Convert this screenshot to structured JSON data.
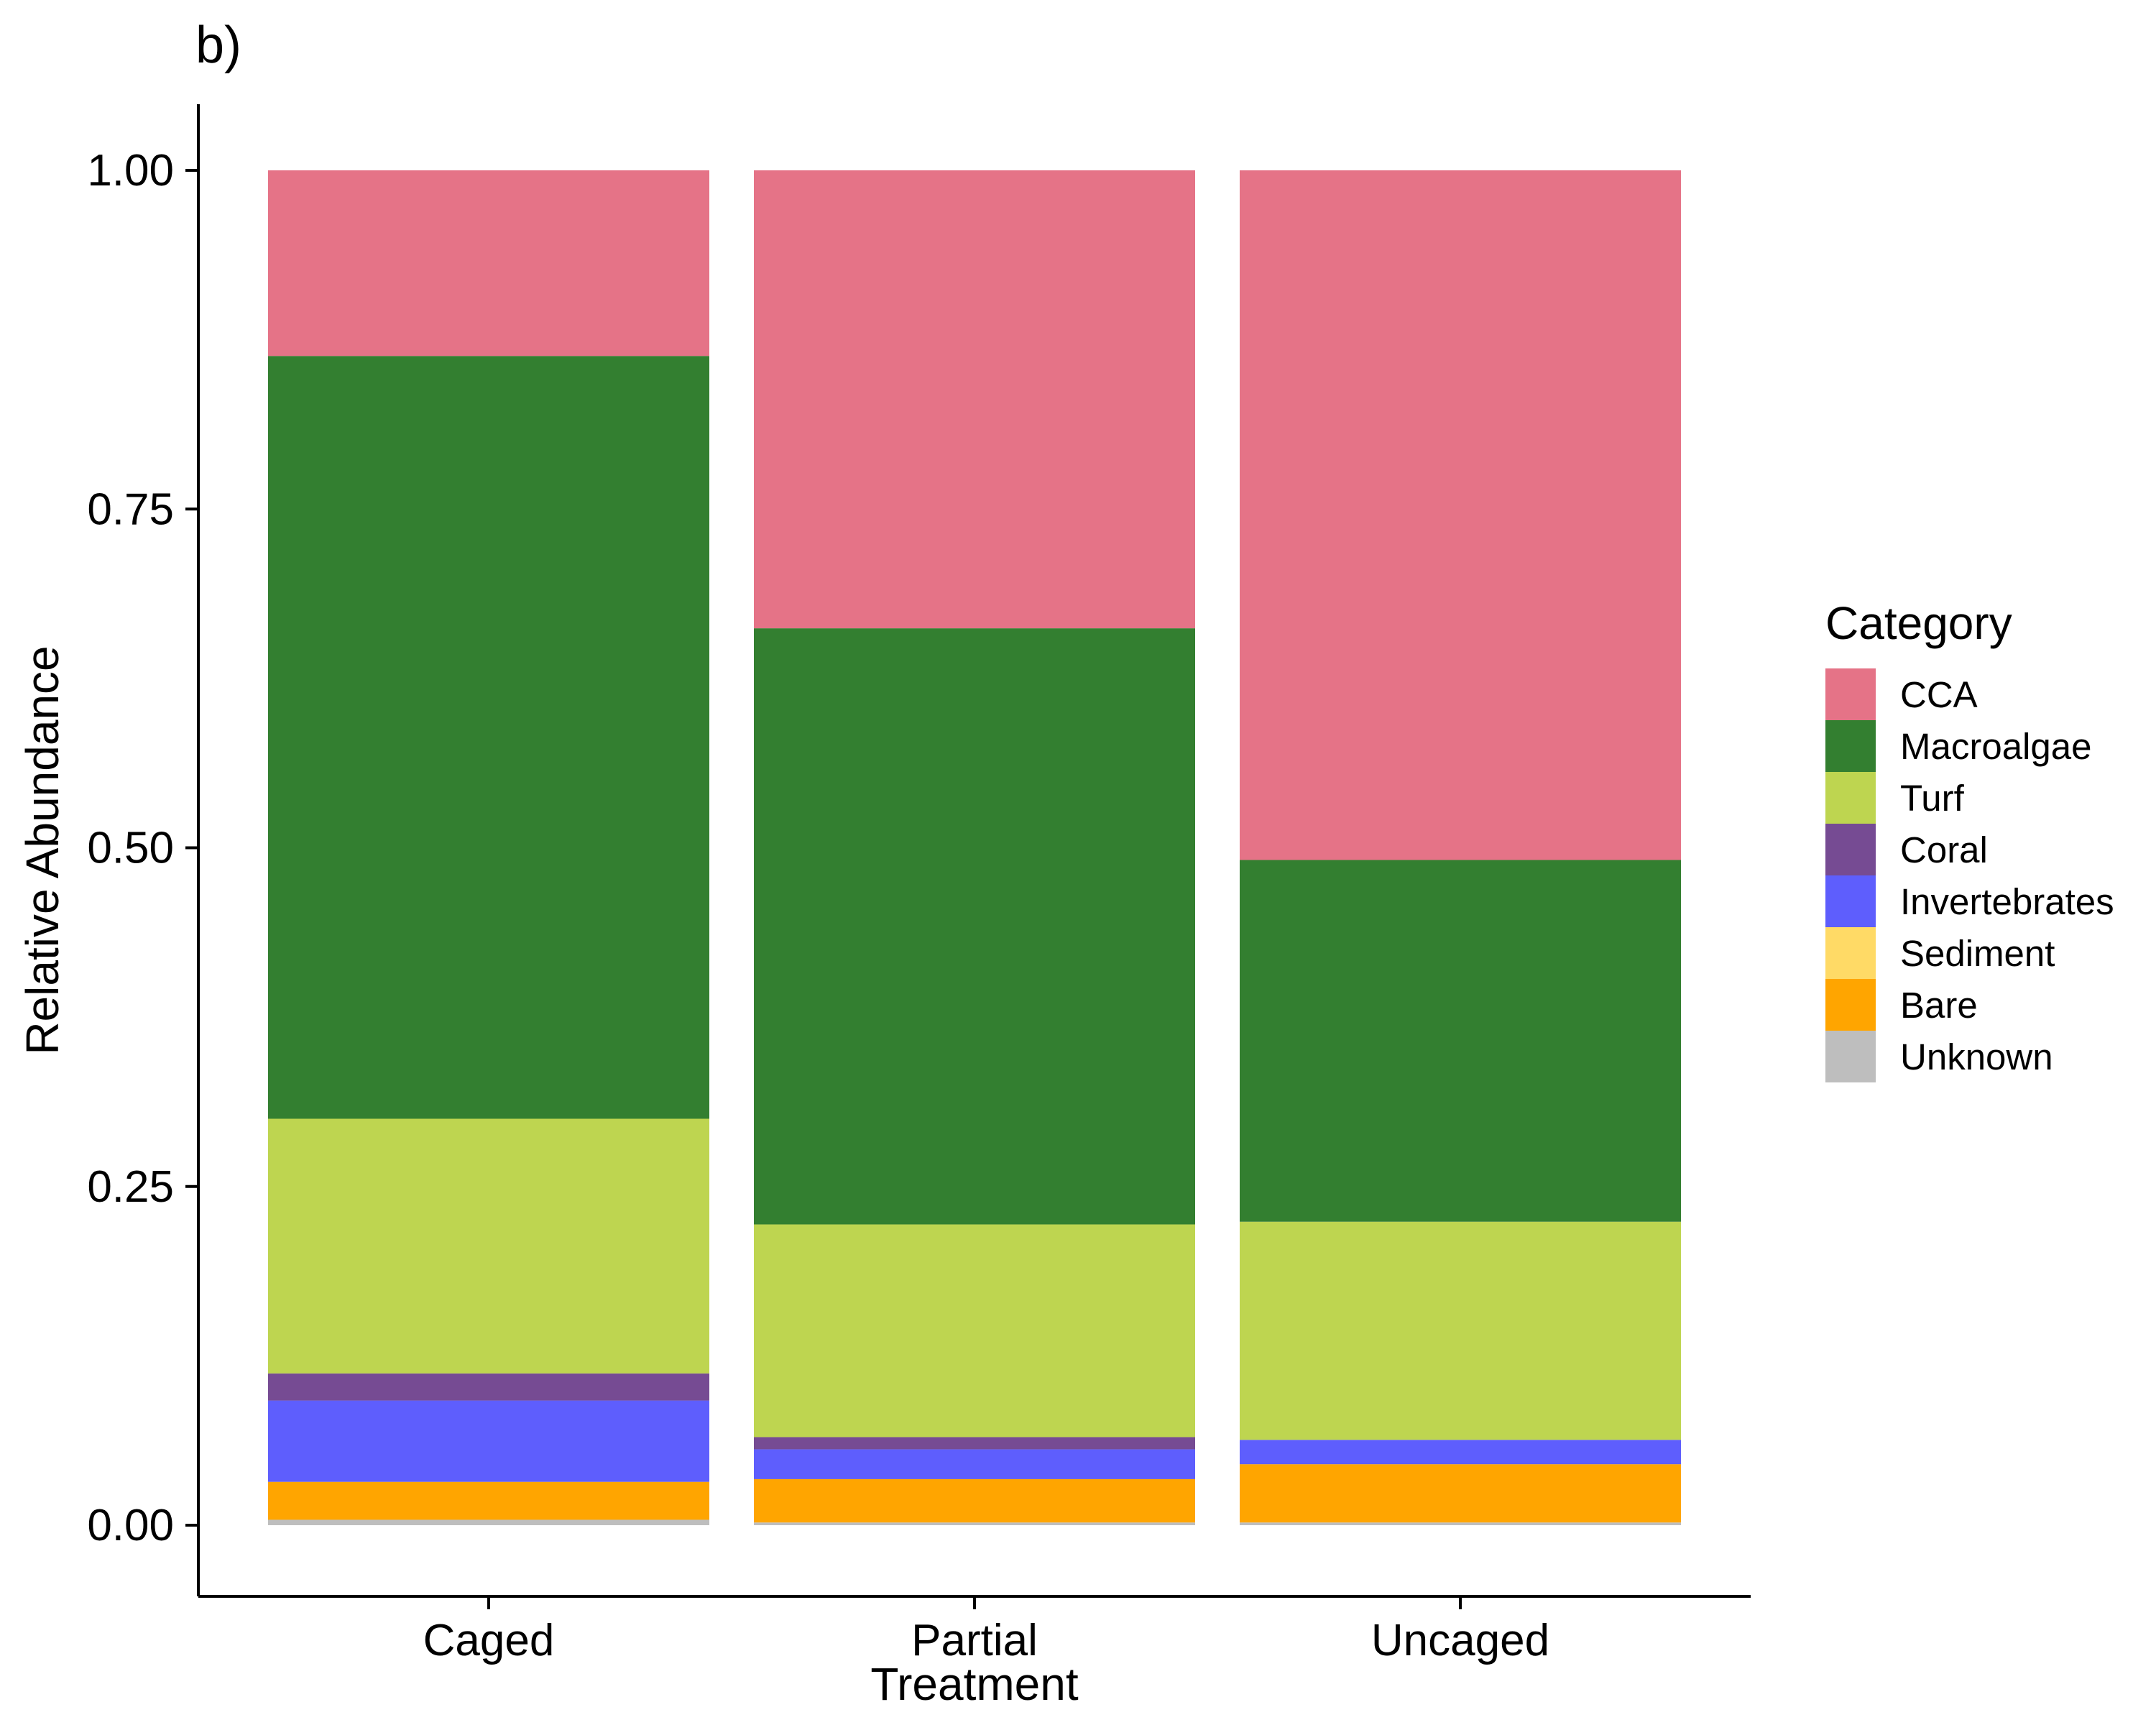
{
  "panel_tag": "b)",
  "chart_data": {
    "type": "bar",
    "stacked": true,
    "title": "",
    "xlabel": "Treatment",
    "ylabel": "Relative Abundance",
    "ylim": [
      0,
      1.05
    ],
    "yticks": [
      "0.00",
      "0.25",
      "0.50",
      "0.75",
      "1.00"
    ],
    "ytick_values": [
      0,
      0.25,
      0.5,
      0.75,
      1.0
    ],
    "categories": [
      "Caged",
      "Partial",
      "Uncaged"
    ],
    "legend_title": "Category",
    "legend_position": "right",
    "grid": false,
    "series": [
      {
        "name": "CCA",
        "color": "#E57387",
        "values": [
          0.137,
          0.338,
          0.509
        ]
      },
      {
        "name": "Macroalgae",
        "color": "#337F30",
        "values": [
          0.563,
          0.44,
          0.267
        ]
      },
      {
        "name": "Turf",
        "color": "#BED550",
        "values": [
          0.188,
          0.157,
          0.161
        ]
      },
      {
        "name": "Coral",
        "color": "#764B93",
        "values": [
          0.02,
          0.009,
          0.0
        ]
      },
      {
        "name": "Invertebrates",
        "color": "#5E5EFD",
        "values": [
          0.06,
          0.022,
          0.018
        ]
      },
      {
        "name": "Sediment",
        "color": "#FFDA66",
        "values": [
          0.0,
          0.0,
          0.0
        ]
      },
      {
        "name": "Bare",
        "color": "#FFA500",
        "values": [
          0.028,
          0.032,
          0.043
        ]
      },
      {
        "name": "Unknown",
        "color": "#BEBEBE",
        "values": [
          0.004,
          0.002,
          0.002
        ]
      }
    ]
  }
}
